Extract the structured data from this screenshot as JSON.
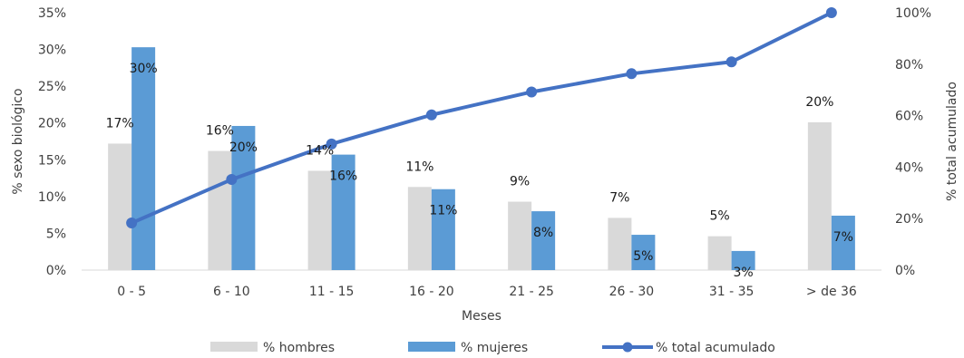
{
  "chart_data": {
    "type": "bar",
    "xlabel": "Meses",
    "ylabel": "% sexo biológico",
    "y2label": "% total acumulado",
    "categories": [
      "0 - 5",
      "6 - 10",
      "11 - 15",
      "16 - 20",
      "21 - 25",
      "26 - 30",
      "31 - 35",
      "> de 36"
    ],
    "ylim": [
      0,
      35
    ],
    "y_ticks": [
      "0%",
      "5%",
      "10%",
      "15%",
      "20%",
      "25%",
      "30%",
      "35%"
    ],
    "y2lim": [
      0,
      100
    ],
    "y2_ticks": [
      "0%",
      "20%",
      "40%",
      "60%",
      "80%",
      "100%"
    ],
    "grid": false,
    "legend_position": "bottom",
    "series": [
      {
        "name": "% hombres",
        "type": "bar",
        "axis": "left",
        "color": "#d9d9d9",
        "values": [
          17.2,
          16.2,
          13.5,
          11.3,
          9.3,
          7.1,
          4.6,
          20.1
        ],
        "labels": [
          "17%",
          "16%",
          "14%",
          "11%",
          "9%",
          "7%",
          "5%",
          "20%"
        ]
      },
      {
        "name": "% mujeres",
        "type": "bar",
        "axis": "right",
        "color": "#5b9bd5",
        "values": [
          30.3,
          19.6,
          15.7,
          11.0,
          8.0,
          4.8,
          2.6,
          7.4
        ],
        "labels": [
          "30%",
          "20%",
          "16%",
          "11%",
          "8%",
          "5%",
          "3%",
          "7%"
        ]
      },
      {
        "name": "% total acumulado",
        "type": "line",
        "axis": "right2",
        "color": "#4472c4",
        "values": [
          18.3,
          35.2,
          49.0,
          60.3,
          69.2,
          76.3,
          80.9,
          100
        ]
      }
    ]
  }
}
